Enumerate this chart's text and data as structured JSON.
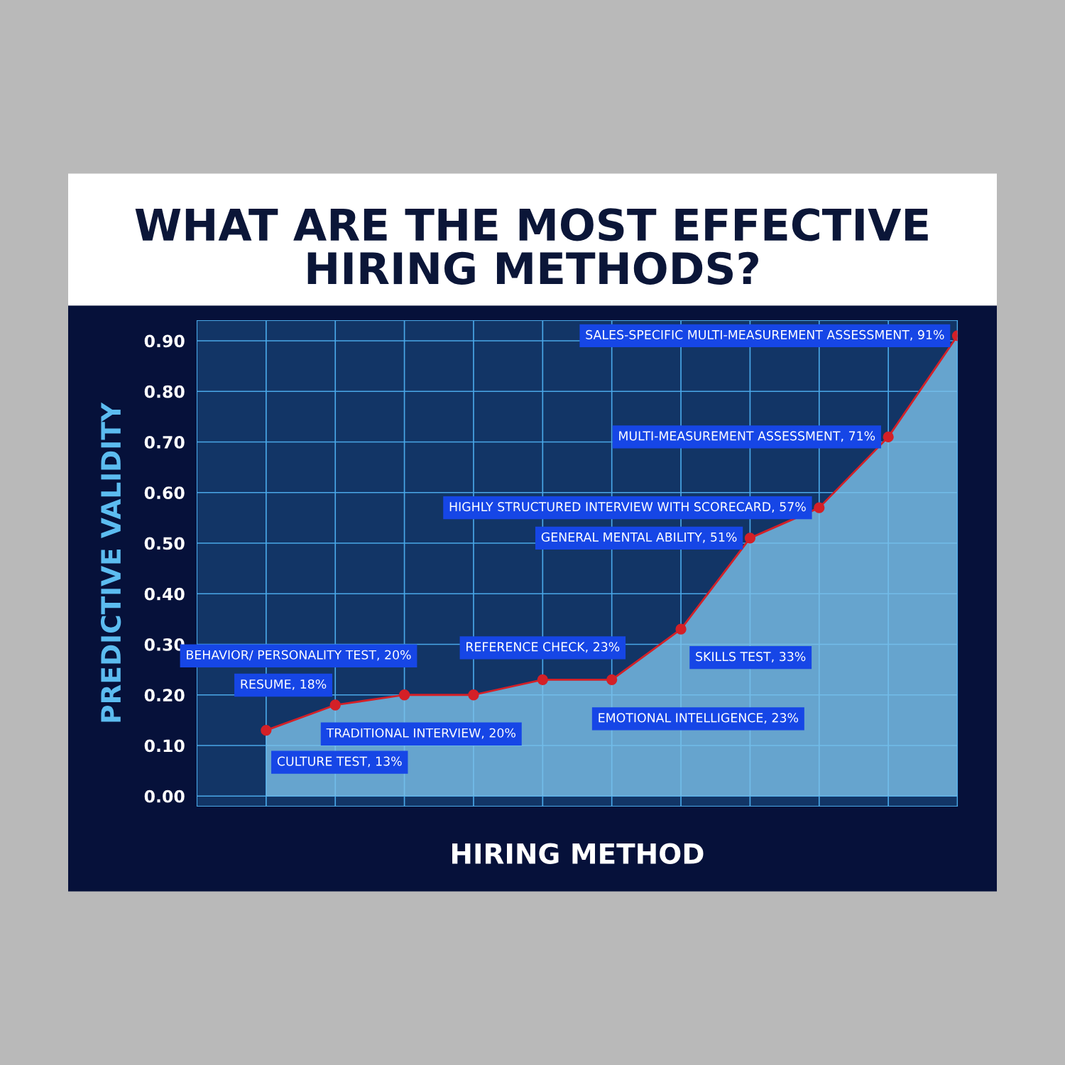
{
  "chart_data": {
    "type": "line",
    "title": "WHAT ARE THE MOST EFFECTIVE\nHIRING METHODS?",
    "xlabel": "HIRING METHOD",
    "ylabel": "PREDICTIVE VALIDITY",
    "categories": [
      null,
      null,
      null,
      null,
      null,
      null,
      null,
      null,
      null,
      null,
      null
    ],
    "series": [
      {
        "type": "area",
        "color": "#7cc0e8",
        "values": [
          0.13,
          0.18,
          0.2,
          0.2,
          0.23,
          0.23,
          0.33,
          0.51,
          0.57,
          0.71,
          0.91
        ]
      },
      {
        "color": "#d42027",
        "marker": "circle",
        "values": [
          0.13,
          0.18,
          0.2,
          0.2,
          0.23,
          0.23,
          0.33,
          0.51,
          0.57,
          0.71,
          0.91
        ],
        "value_labels": [
          "CULTURE TEST, 13%",
          "RESUME, 18%",
          "BEHAVIOR/ PERSONALITY TEST, 20%",
          "TRADITIONAL INTERVIEW, 20%",
          "REFERENCE CHECK, 23%",
          "EMOTIONAL INTELLIGENCE, 23%",
          "SKILLS TEST, 33%",
          "GENERAL MENTAL ABILITY, 51%",
          "HIGHLY STRUCTURED INTERVIEW WITH SCORECARD, 57%",
          "MULTI-MEASUREMENT ASSESSMENT, 71%",
          "SALES-SPECIFIC MULTI-MEASUREMENT ASSESSMENT, 91%"
        ]
      }
    ],
    "ylim": [
      -0.02,
      0.94
    ],
    "yticks": [
      {
        "value": 0,
        "label": "0.00"
      },
      {
        "value": 0.1,
        "label": "0.10"
      },
      {
        "value": 0.2,
        "label": "0.20"
      },
      {
        "value": 0.3,
        "label": "0.30"
      },
      {
        "value": 0.4,
        "label": "0.40"
      },
      {
        "value": 0.5,
        "label": "0.50"
      },
      {
        "value": 0.6,
        "label": "0.60"
      },
      {
        "value": 0.7,
        "label": "0.70"
      },
      {
        "value": 0.8,
        "label": "0.80"
      },
      {
        "value": 0.9,
        "label": "0.90"
      }
    ],
    "grid": true,
    "tick_labels": "y"
  }
}
